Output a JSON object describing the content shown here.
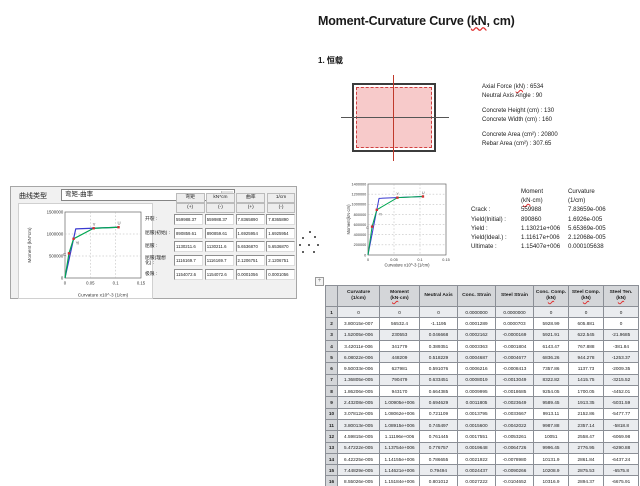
{
  "doc": {
    "title": {
      "pre": "Moment-Curvature Curve (",
      "kn": "kN",
      "post": ", cm)"
    },
    "heading": "1. 恒载",
    "section_props": [
      {
        "pre": "Axial Force (",
        "kn": "kN",
        "post": ") : 6534"
      },
      {
        "pre": "Neutral Axis Angle : 90",
        "kn": "",
        "post": ""
      },
      {
        "pre": "Concrete Height (cm) : 130",
        "kn": "",
        "post": ""
      },
      {
        "pre": "Concrete Width (cm) : 160",
        "kn": "",
        "post": ""
      },
      {
        "pre": "Concrete Area (cm²) : 20800",
        "kn": "",
        "post": ""
      },
      {
        "pre": "Rebar Area (cm²) : 307.65",
        "kn": "",
        "post": ""
      }
    ]
  },
  "section_figure": {
    "fill": "#f7caca",
    "rebar_color": "#d04040",
    "axis_color": "#c0392b",
    "outline_color": "#3c3c3c"
  },
  "dialog": {
    "curve_type_label": "曲线类型",
    "curve_type_value": "弯矩-曲率",
    "dropdown_arrow": "▼",
    "table": {
      "col_headers": [
        "弯矩",
        "kN*cm",
        "曲率",
        "1/cm"
      ],
      "sign_headers": [
        "(+)",
        "(-)",
        "(+)",
        "(-)"
      ],
      "rows": [
        {
          "label": "开裂 :",
          "values": [
            "559988.37",
            "559988.37",
            "7.8365890",
            "7.8365890"
          ]
        },
        {
          "label": "屈服(初始) :",
          "values": [
            "890859.61",
            "890859.61",
            "1.6925954",
            "1.6925954"
          ]
        },
        {
          "label": "屈服 :",
          "values": [
            "1130211.6",
            "1130211.6",
            "5.6536870",
            "5.6536870"
          ]
        },
        {
          "label": "屈服(理想化) :",
          "values": [
            "1116169.7",
            "1116169.7",
            "2.1206751",
            "2.1206751"
          ]
        },
        {
          "label": "极限 :",
          "values": [
            "1154072.6",
            "1154072.6",
            "0.0001056",
            "0.0001056"
          ]
        }
      ]
    }
  },
  "mc_values": {
    "moment_header": "Moment",
    "moment_unit_pre": "(",
    "moment_unit_kn": "kN",
    "moment_unit_post": "·cm)",
    "curvature_header": "Curvature",
    "curvature_unit": "(1/cm)",
    "rows": [
      {
        "label": "Crack :",
        "moment": "559988",
        "curvature": "7.83659e-006"
      },
      {
        "label": "Yield(Initial) :",
        "moment": "890860",
        "curvature": "1.6926e-005"
      },
      {
        "label": "Yield :",
        "moment": "1.13021e+006",
        "curvature": "5.65369e-005"
      },
      {
        "label": "Yield(Ideal.) :",
        "moment": "1.11617e+006",
        "curvature": "2.12068e-005"
      },
      {
        "label": "Ultimate :",
        "moment": "1.15407e+006",
        "curvature": "0.000105638"
      }
    ]
  },
  "bottom_table": {
    "handle_glyph": "+",
    "headers": [
      {
        "l1": "",
        "l2_pre": "",
        "l2_kn": "",
        "l2_post": ""
      },
      {
        "l1": "Curvature",
        "l2_pre": "(1/cm)",
        "l2_kn": "",
        "l2_post": ""
      },
      {
        "l1": "Moment",
        "l2_pre": "(",
        "l2_kn": "kN",
        "l2_post": "·cm)"
      },
      {
        "l1": "Neutral Axis",
        "l2_pre": "",
        "l2_kn": "",
        "l2_post": ""
      },
      {
        "l1": "Conc. Strain",
        "l2_pre": "",
        "l2_kn": "",
        "l2_post": ""
      },
      {
        "l1": "Steel Strain",
        "l2_pre": "",
        "l2_kn": "",
        "l2_post": ""
      },
      {
        "l1": "Conc. Comp.",
        "l2_pre": "(",
        "l2_kn": "kN",
        "l2_post": ")"
      },
      {
        "l1": "Steel Comp.",
        "l2_pre": "(",
        "l2_kn": "kN",
        "l2_post": ")"
      },
      {
        "l1": "Steel Ten.",
        "l2_pre": "(",
        "l2_kn": "kN",
        "l2_post": ")"
      }
    ],
    "rows": [
      [
        "0",
        "0",
        "0",
        "0.0000000",
        "0.0000000",
        "0",
        "0",
        "0"
      ],
      [
        "3.80015e-007",
        "56532.4",
        "-1.1195",
        "0.0001289",
        "0.0000703",
        "5928.99",
        "605.881",
        "0"
      ],
      [
        "1.52005e-006",
        "230553",
        "0.046668",
        "0.0002162",
        "-0.0000169",
        "5921.91",
        "622.545",
        "-21.9685"
      ],
      [
        "3.42011e-006",
        "341779",
        "0.389351",
        "0.0003363",
        "-0.0001804",
        "6143.47",
        "767.888",
        "-381.84"
      ],
      [
        "6.08022e-006",
        "448209",
        "0.518229",
        "0.0004687",
        "-0.0004677",
        "6836.26",
        "944.278",
        "-1253.37"
      ],
      [
        "9.50033e-006",
        "627981",
        "0.591076",
        "0.0006216",
        "-0.0008413",
        "7357.86",
        "1137.73",
        "-2009.35"
      ],
      [
        "1.36805e-005",
        "790479",
        "0.633451",
        "0.0008019",
        "-0.0013049",
        "8322.82",
        "1415.75",
        "-3215.52"
      ],
      [
        "1.86206e-005",
        "943170",
        "0.664385",
        "0.0009995",
        "-0.0018685",
        "9254.05",
        "1700.05",
        "-4452.01"
      ],
      [
        "2.43208e-005",
        "1.00905e+006",
        "0.694629",
        "0.0011805",
        "-0.0023649",
        "9589.45",
        "1913.35",
        "-5031.59"
      ],
      [
        "3.07812e-005",
        "1.08062e+006",
        "0.721109",
        "0.0013795",
        "-0.0033667",
        "9913.11",
        "2152.86",
        "-5477.77"
      ],
      [
        "3.80013e-005",
        "1.08915e+006",
        "0.745497",
        "0.0015600",
        "-0.0042022",
        "9987.88",
        "2357.14",
        "-5818.8"
      ],
      [
        "4.59815e-005",
        "1.11196e+006",
        "0.761445",
        "0.0017551",
        "-0.0053261",
        "10051",
        "2558.47",
        "-6069.98"
      ],
      [
        "5.47222e-005",
        "1.13754e+006",
        "0.776757",
        "0.0019648",
        "-0.0064726",
        "9996.45",
        "2776.95",
        "-6290.88"
      ],
      [
        "6.42225e-005",
        "1.14155e+006",
        "0.786655",
        "0.0021922",
        "-0.0078980",
        "10131.9",
        "2861.84",
        "-6437.24"
      ],
      [
        "7.44829e-005",
        "1.14621e+006",
        "0.79494",
        "0.0024437",
        "-0.0090266",
        "10208.9",
        "2875.53",
        "-6575.8"
      ],
      [
        "8.55026e-005",
        "1.15184e+006",
        "0.801012",
        "0.0027222",
        "-0.0104652",
        "10316.9",
        "2894.37",
        "-6675.91"
      ]
    ]
  },
  "chart_data": [
    {
      "type": "line",
      "title": "",
      "xlabel": "Curvature x10^-3 (1/cm)",
      "ylabel": "Moment (kN*cm)",
      "xlim": [
        0,
        0.15
      ],
      "ylim": [
        0,
        1500000
      ],
      "xticks": [
        0,
        0.05,
        0.1,
        0.15
      ],
      "yticks": [
        0,
        500000,
        1000000,
        1500000
      ],
      "grid": true,
      "legend": "none",
      "marker_color": "#d03030",
      "series": [
        {
          "name": "Idealized",
          "color": "#3a3ad0",
          "x": [
            0,
            0.0212068,
            0.105638
          ],
          "y": [
            0,
            1116169.7,
            1154072.6
          ]
        },
        {
          "name": "Actual",
          "color": "#00a651",
          "x": [
            0,
            0.0078366,
            0.016926,
            0.0565369,
            0.105638
          ],
          "y": [
            0,
            559988.4,
            890859.6,
            1130211.6,
            1154072.6
          ]
        }
      ],
      "markers": [
        {
          "label": "C",
          "x": 0.0078366,
          "y": 559988.4
        },
        {
          "label": "Yi",
          "x": 0.016926,
          "y": 890859.6
        },
        {
          "label": "Y",
          "x": 0.0565369,
          "y": 1130211.6
        },
        {
          "label": "U",
          "x": 0.105638,
          "y": 1154072.6
        }
      ]
    },
    {
      "type": "line",
      "title": "",
      "xlabel": "Curvature x10^-3 (1/cm)",
      "ylabel": "Moment(kN·cm)",
      "xlim": [
        0,
        0.15
      ],
      "ylim": [
        0,
        1400000
      ],
      "xticks": [
        0,
        0.05,
        0.1,
        0.15
      ],
      "yticks": [
        0,
        200000,
        400000,
        600000,
        800000,
        1000000,
        1200000,
        1400000
      ],
      "grid": true,
      "legend": "none",
      "marker_color": "#d03030",
      "series": [
        {
          "name": "Idealized",
          "color": "#3a3ad0",
          "x": [
            0,
            0.0212068,
            0.105638
          ],
          "y": [
            0,
            1116169.7,
            1154072.6
          ]
        },
        {
          "name": "Actual",
          "color": "#00a651",
          "x": [
            0,
            0.0078366,
            0.016926,
            0.0565369,
            0.105638
          ],
          "y": [
            0,
            559988.4,
            890859.6,
            1130211.6,
            1154072.6
          ]
        }
      ],
      "markers": [
        {
          "label": "C",
          "x": 0.0078366,
          "y": 559988.4
        },
        {
          "label": "Yi",
          "x": 0.016926,
          "y": 890859.6
        },
        {
          "label": "Y",
          "x": 0.0565369,
          "y": 1130211.6
        },
        {
          "label": "U",
          "x": 0.105638,
          "y": 1154072.6
        }
      ]
    }
  ]
}
